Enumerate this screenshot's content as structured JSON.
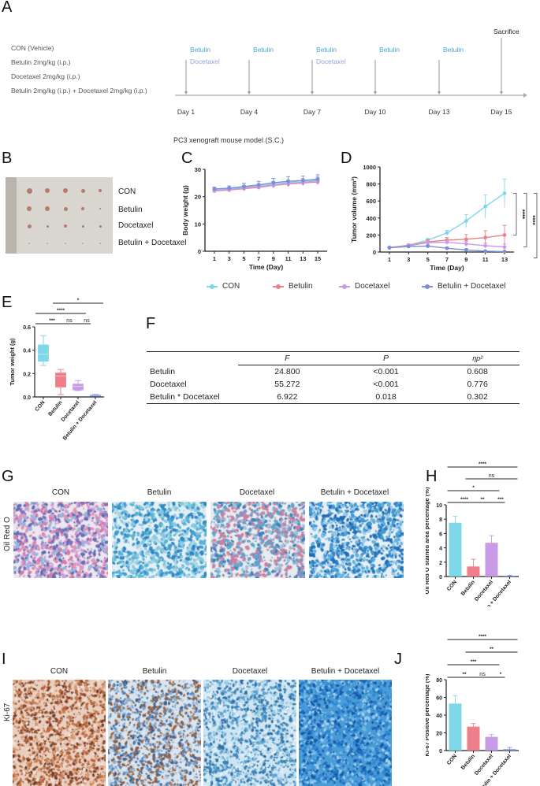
{
  "panels": {
    "A": {
      "letter": "A",
      "groups": [
        "CON (Vehicle)",
        "Betulin 2mg/kg (i.p.)",
        "Docetaxel 2mg/kg (i.p.)",
        "Betulin 2mg/kg (i.p.) + Docetaxel 2mg/kg (i.p.)"
      ],
      "timeline": [
        {
          "day": "Day 1",
          "drugs": [
            "Betulin",
            "Docetaxel"
          ]
        },
        {
          "day": "Day 4",
          "drugs": [
            "Betulin"
          ]
        },
        {
          "day": "Day 7",
          "drugs": [
            "Betulin",
            "Docetaxel"
          ]
        },
        {
          "day": "Day 10",
          "drugs": [
            "Betulin"
          ]
        },
        {
          "day": "Day 13",
          "drugs": [
            "Betulin"
          ]
        },
        {
          "day": "Day 15",
          "drugs": [
            "Sacrifice"
          ]
        }
      ],
      "model_label": "PC3 xenograft mouse model (S.C.)",
      "colors": {
        "betulin": "#4da3d9",
        "docetaxel": "#8ea6dc",
        "arrow": "#999999"
      }
    },
    "B": {
      "letter": "B",
      "rows": [
        "CON",
        "Betulin",
        "Docetaxel",
        "Betulin + Docetaxel"
      ]
    },
    "G": {
      "letter": "G",
      "stain": "Oil Red O",
      "columns": [
        "CON",
        "Betulin",
        "Docetaxel",
        "Betulin + Docetaxel"
      ]
    },
    "I": {
      "letter": "I",
      "stain": "Ki-67",
      "columns": [
        "CON",
        "Betulin",
        "Docetaxel",
        "Betulin + Docetaxel"
      ]
    },
    "F": {
      "letter": "F",
      "headers": [
        "",
        "F",
        "P",
        "ηp²"
      ],
      "rows": [
        [
          "Betulin",
          "24.800",
          "<0.001",
          "0.608"
        ],
        [
          "Docetaxel",
          "55.272",
          "<0.001",
          "0.776"
        ],
        [
          "Betulin * Docetaxel",
          "6.922",
          "0.018",
          "0.302"
        ]
      ]
    }
  },
  "legend": {
    "items": [
      {
        "label": "CON",
        "color": "#7fd7ea"
      },
      {
        "label": "Betulin",
        "color": "#ee7f8a"
      },
      {
        "label": "Docetaxel",
        "color": "#c99be6"
      },
      {
        "label": "Betulin + Docetaxel",
        "color": "#7b8fd4"
      }
    ]
  },
  "chart_data": [
    {
      "id": "C",
      "letter": "C",
      "type": "line",
      "title": "",
      "xlabel": "Time (Day)",
      "ylabel": "Body weight (g)",
      "x": [
        1,
        3,
        5,
        7,
        9,
        11,
        13,
        15
      ],
      "xticks": [
        "1",
        "3",
        "5",
        "7",
        "9",
        "11",
        "13",
        "15"
      ],
      "yticks": [
        "0",
        "10",
        "20",
        "30"
      ],
      "ylim": [
        0,
        30
      ],
      "series": [
        {
          "name": "CON",
          "color": "#7fd7ea",
          "values": [
            22.5,
            22.8,
            23.4,
            23.9,
            24.6,
            25.1,
            25.5,
            26.0
          ],
          "err": [
            0.6,
            0.6,
            0.8,
            0.9,
            1.0,
            1.1,
            1.2,
            1.3
          ]
        },
        {
          "name": "Betulin",
          "color": "#ee7f8a",
          "values": [
            22.1,
            22.4,
            22.9,
            23.4,
            24.1,
            24.6,
            25.0,
            25.4
          ],
          "err": [
            0.6,
            0.6,
            0.7,
            0.8,
            0.9,
            1.0,
            1.0,
            1.1
          ]
        },
        {
          "name": "Docetaxel",
          "color": "#c99be6",
          "values": [
            22.2,
            22.6,
            23.1,
            23.6,
            24.3,
            24.8,
            25.2,
            25.7
          ],
          "err": [
            0.6,
            0.7,
            0.8,
            0.9,
            1.0,
            1.1,
            1.1,
            1.2
          ]
        },
        {
          "name": "Betulin + Docetaxel",
          "color": "#7b8fd4",
          "values": [
            22.8,
            23.1,
            23.7,
            24.3,
            25.1,
            25.6,
            25.9,
            26.4
          ],
          "err": [
            0.7,
            0.8,
            1.2,
            1.3,
            1.6,
            1.7,
            1.6,
            1.6
          ]
        }
      ]
    },
    {
      "id": "D",
      "letter": "D",
      "type": "line",
      "title": "",
      "xlabel": "Time (Day)",
      "ylabel": "Tumor volume (mm³)",
      "x": [
        1,
        3,
        5,
        7,
        9,
        11,
        13
      ],
      "xticks": [
        "1",
        "3",
        "5",
        "7",
        "9",
        "11",
        "13"
      ],
      "yticks": [
        "0",
        "200",
        "400",
        "600",
        "800",
        "1000"
      ],
      "ylim": [
        0,
        1000
      ],
      "series": [
        {
          "name": "CON",
          "color": "#7fd7ea",
          "values": [
            55,
            80,
            140,
            225,
            365,
            535,
            690
          ],
          "err": [
            8,
            12,
            20,
            30,
            75,
            135,
            165
          ]
        },
        {
          "name": "Betulin",
          "color": "#ee7f8a",
          "values": [
            52,
            78,
            120,
            140,
            150,
            170,
            200
          ],
          "err": [
            8,
            12,
            25,
            30,
            55,
            80,
            115
          ]
        },
        {
          "name": "Docetaxel",
          "color": "#c99be6",
          "values": [
            50,
            72,
            110,
            115,
            95,
            75,
            60
          ],
          "err": [
            8,
            10,
            20,
            25,
            30,
            30,
            35
          ]
        },
        {
          "name": "Betulin + Docetaxel",
          "color": "#7b8fd4",
          "values": [
            50,
            65,
            70,
            45,
            25,
            10,
            5
          ],
          "err": [
            6,
            8,
            12,
            12,
            10,
            6,
            4
          ]
        }
      ],
      "annotations": [
        "****",
        "****",
        "****"
      ]
    },
    {
      "id": "E",
      "letter": "E",
      "type": "box",
      "ylabel": "Tumor weight (g)",
      "categories": [
        "CON",
        "Betulin",
        "Docetaxel",
        "Betulin + Docetaxel"
      ],
      "yticks": [
        "0.0",
        "0.2",
        "0.4",
        "0.6"
      ],
      "ylim": [
        0,
        0.6
      ],
      "boxes": [
        {
          "color": "#7fd7ea",
          "min": 0.27,
          "q1": 0.305,
          "median": 0.365,
          "q3": 0.445,
          "max": 0.525
        },
        {
          "color": "#ee7f8a",
          "min": 0.02,
          "q1": 0.085,
          "median": 0.18,
          "q3": 0.205,
          "max": 0.235
        },
        {
          "color": "#c99be6",
          "min": 0.055,
          "q1": 0.06,
          "median": 0.09,
          "q3": 0.11,
          "max": 0.14
        },
        {
          "color": "#7b8fd4",
          "min": 0.008,
          "q1": 0.01,
          "median": 0.013,
          "q3": 0.016,
          "max": 0.02
        }
      ],
      "significance": [
        {
          "from": 0,
          "to": 1,
          "label": "***"
        },
        {
          "from": 1,
          "to": 2,
          "label": "ns"
        },
        {
          "from": 2,
          "to": 3,
          "label": "ns"
        },
        {
          "from": 0,
          "to": 2,
          "label": "****"
        },
        {
          "from": 1,
          "to": 3,
          "label": "*"
        },
        {
          "from": 0,
          "to": 3,
          "label": "****"
        }
      ]
    },
    {
      "id": "H",
      "letter": "H",
      "type": "bar",
      "ylabel": "Oil Red O stained area percentage (%)",
      "categories": [
        "CON",
        "Betulin",
        "Docetaxel",
        "Betulin + Docetaxel"
      ],
      "yticks": [
        "0",
        "2",
        "4",
        "6",
        "8",
        "10"
      ],
      "ylim": [
        0,
        10
      ],
      "values": [
        7.5,
        1.4,
        4.7,
        0.1
      ],
      "err": [
        0.9,
        1.0,
        1.0,
        0.05
      ],
      "colors": [
        "#7fd7ea",
        "#ee7f8a",
        "#c99be6",
        "#7b8fd4"
      ],
      "significance": [
        {
          "from": 0,
          "to": 1,
          "label": "****"
        },
        {
          "from": 1,
          "to": 2,
          "label": "**"
        },
        {
          "from": 2,
          "to": 3,
          "label": "***"
        },
        {
          "from": 0,
          "to": 2,
          "label": "*"
        },
        {
          "from": 1,
          "to": 3,
          "label": "ns"
        },
        {
          "from": 0,
          "to": 3,
          "label": "****"
        }
      ]
    },
    {
      "id": "J",
      "letter": "J",
      "type": "bar",
      "ylabel": "Ki-67 Positive percentage (%)",
      "categories": [
        "CON",
        "Betulin",
        "Docetaxel",
        "Betulin + Docetaxel"
      ],
      "yticks": [
        "0",
        "20",
        "40",
        "60",
        "80"
      ],
      "ylim": [
        0,
        80
      ],
      "values": [
        53,
        27,
        15.5,
        1.5
      ],
      "err": [
        9,
        3.5,
        2.5,
        2
      ],
      "colors": [
        "#7fd7ea",
        "#ee7f8a",
        "#c99be6",
        "#7b8fd4"
      ],
      "significance": [
        {
          "from": 0,
          "to": 1,
          "label": "**"
        },
        {
          "from": 1,
          "to": 2,
          "label": "ns"
        },
        {
          "from": 2,
          "to": 3,
          "label": "*"
        },
        {
          "from": 0,
          "to": 2,
          "label": "***"
        },
        {
          "from": 1,
          "to": 3,
          "label": "**"
        },
        {
          "from": 0,
          "to": 3,
          "label": "****"
        }
      ]
    }
  ]
}
